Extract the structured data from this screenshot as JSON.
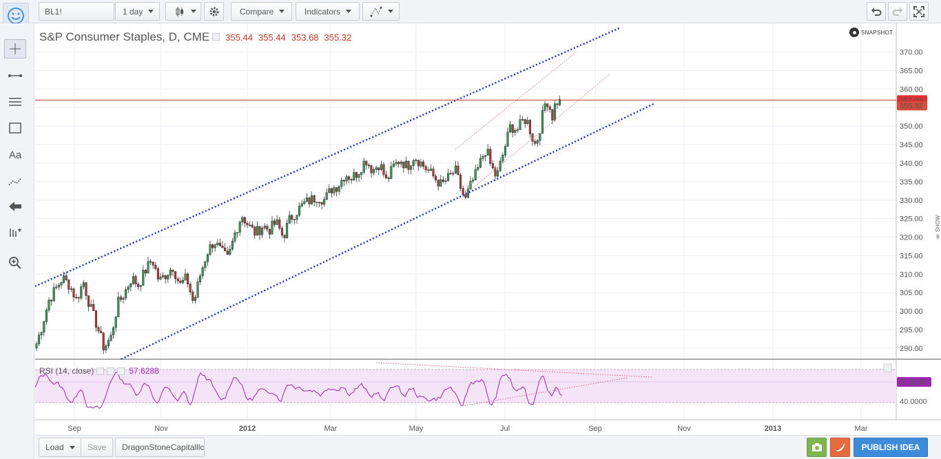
{
  "toolbar": {
    "symbol": "BL1!",
    "interval": "1 day",
    "compare_label": "Compare",
    "indicators_label": "Indicators"
  },
  "chart": {
    "title": "S&P Consumer Staples, D, CME",
    "open": "355.44",
    "high": "355.44",
    "low": "353.68",
    "close": "355.32",
    "snapshot_label": "SNAPSHOT",
    "price_badge": "357.03",
    "last_badge": "355.32",
    "rsi_label": "RSI (14, close)",
    "rsi_value": "57.6288",
    "rsi_badge": "57.6288",
    "rsi_tick": "40.0000",
    "show_label": "≪ SHOW",
    "colors": {
      "up": "#3a9b5a",
      "down": "#b33a3a",
      "channel": "#1f2fcc",
      "rsi": "#9b27af",
      "hline": "#c0392b"
    }
  },
  "chart_data": {
    "type": "candlestick",
    "title": "S&P Consumer Staples, D, CME",
    "y_ticks": [
      "370.00",
      "365.00",
      "360.00",
      "355.00",
      "350.00",
      "345.00",
      "340.00",
      "335.00",
      "330.00",
      "325.00",
      "320.00",
      "315.00",
      "310.00",
      "305.00",
      "300.00",
      "295.00",
      "290.00"
    ],
    "y_values": [
      370,
      365,
      360,
      355,
      350,
      345,
      340,
      335,
      330,
      325,
      320,
      315,
      310,
      305,
      300,
      295,
      290
    ],
    "ylim": [
      287,
      377
    ],
    "x_ticks": [
      "Sep",
      "Nov",
      "2012",
      "Mar",
      "May",
      "Jul",
      "Sep",
      "Nov",
      "2013",
      "Mar"
    ],
    "x_tick_pos": [
      57,
      183,
      308,
      429,
      553,
      682,
      813,
      942,
      1071,
      1199
    ],
    "close_path": [
      [
        0,
        290
      ],
      [
        10,
        296
      ],
      [
        20,
        303
      ],
      [
        30,
        306
      ],
      [
        40,
        309
      ],
      [
        50,
        307
      ],
      [
        60,
        303
      ],
      [
        70,
        308
      ],
      [
        80,
        301
      ],
      [
        90,
        296
      ],
      [
        100,
        290
      ],
      [
        110,
        293
      ],
      [
        120,
        302
      ],
      [
        130,
        305
      ],
      [
        140,
        309
      ],
      [
        150,
        307
      ],
      [
        160,
        311
      ],
      [
        170,
        314
      ],
      [
        180,
        308
      ],
      [
        190,
        310
      ],
      [
        200,
        312
      ],
      [
        210,
        307
      ],
      [
        220,
        309
      ],
      [
        230,
        302
      ],
      [
        240,
        310
      ],
      [
        250,
        316
      ],
      [
        260,
        319
      ],
      [
        270,
        316
      ],
      [
        280,
        314
      ],
      [
        290,
        321
      ],
      [
        300,
        326
      ],
      [
        310,
        323
      ],
      [
        320,
        321
      ],
      [
        330,
        323
      ],
      [
        340,
        322
      ],
      [
        350,
        324
      ],
      [
        360,
        320
      ],
      [
        370,
        325
      ],
      [
        380,
        327
      ],
      [
        390,
        329
      ],
      [
        400,
        330
      ],
      [
        410,
        331
      ],
      [
        420,
        330
      ],
      [
        430,
        333
      ],
      [
        440,
        334
      ],
      [
        450,
        337
      ],
      [
        460,
        336
      ],
      [
        470,
        338
      ],
      [
        480,
        341
      ],
      [
        490,
        338
      ],
      [
        500,
        340
      ],
      [
        510,
        335
      ],
      [
        520,
        339
      ],
      [
        530,
        341
      ],
      [
        540,
        339
      ],
      [
        550,
        342
      ],
      [
        560,
        340
      ],
      [
        570,
        338
      ],
      [
        580,
        336
      ],
      [
        590,
        334
      ],
      [
        600,
        336
      ],
      [
        610,
        338
      ],
      [
        620,
        332
      ],
      [
        625,
        330
      ],
      [
        630,
        333
      ],
      [
        640,
        337
      ],
      [
        650,
        342
      ],
      [
        655,
        344
      ],
      [
        660,
        340
      ],
      [
        670,
        336
      ],
      [
        680,
        343
      ],
      [
        690,
        350
      ],
      [
        700,
        349
      ],
      [
        710,
        352
      ],
      [
        715,
        351
      ],
      [
        720,
        348
      ],
      [
        725,
        345
      ],
      [
        730,
        347
      ],
      [
        740,
        356
      ],
      [
        745,
        357
      ],
      [
        750,
        352
      ],
      [
        755,
        356
      ],
      [
        760,
        357
      ],
      [
        765,
        355.3
      ]
    ],
    "high_line": {
      "price": 357.03
    },
    "rsi": {
      "ylim": [
        30,
        80
      ],
      "ticks": [
        40
      ],
      "latest": 57.6288
    }
  }
}
